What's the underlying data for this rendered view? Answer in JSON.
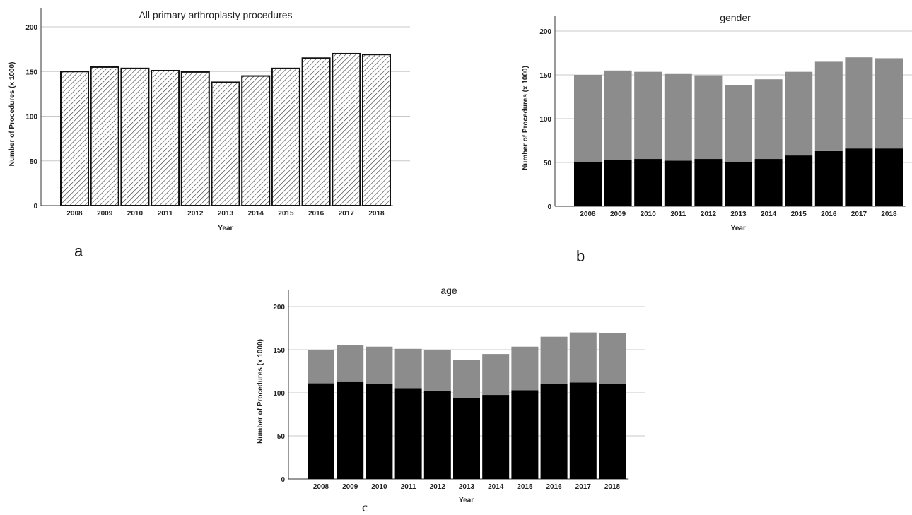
{
  "chart_data": [
    {
      "type": "bar",
      "panel_label": "a",
      "title": "All  primary arthroplasty procedures",
      "xlabel": "Year",
      "ylabel": "Number of Procedures (x 1000)",
      "ylim": [
        0,
        200
      ],
      "yticks": [
        "0",
        "50",
        "100",
        "150",
        "200"
      ],
      "categories": [
        "2008",
        "2009",
        "2010",
        "2011",
        "2012",
        "2013",
        "2014",
        "2015",
        "2016",
        "2017",
        "2018"
      ],
      "values": [
        150,
        155,
        153.5,
        151,
        149.5,
        138,
        145,
        153.5,
        165,
        170,
        169
      ],
      "grid": true,
      "fill": "hatched"
    },
    {
      "type": "bar",
      "stacked": true,
      "panel_label": "b",
      "title": "gender",
      "xlabel": "Year",
      "ylabel": "Number of Procedures (x 1000)",
      "ylim": [
        0,
        200
      ],
      "yticks": [
        "0",
        "50",
        "100",
        "150",
        "200"
      ],
      "categories": [
        "2008",
        "2009",
        "2010",
        "2011",
        "2012",
        "2013",
        "2014",
        "2015",
        "2016",
        "2017",
        "2018"
      ],
      "series": [
        {
          "values": [
            51,
            53,
            54,
            52,
            54,
            51,
            54,
            58,
            63,
            66,
            66
          ],
          "color": "#000000"
        },
        {
          "values": [
            99,
            102,
            99.5,
            99,
            95.5,
            87,
            91,
            95.5,
            102,
            104,
            103
          ],
          "color": "#8c8c8c"
        }
      ],
      "grid": true
    },
    {
      "type": "bar",
      "stacked": true,
      "panel_label": "c",
      "title": "age",
      "xlabel": "Year",
      "ylabel": "Number of Procedures (x 1000)",
      "ylim": [
        0,
        200
      ],
      "yticks": [
        "0",
        "50",
        "100",
        "150",
        "200"
      ],
      "categories": [
        "2008",
        "2009",
        "2010",
        "2011",
        "2012",
        "2013",
        "2014",
        "2015",
        "2016",
        "2017",
        "2018"
      ],
      "series": [
        {
          "values": [
            111,
            112.5,
            110,
            105.5,
            102.5,
            93.5,
            97.5,
            103,
            110,
            112,
            110.5
          ],
          "color": "#000000"
        },
        {
          "values": [
            39,
            42.5,
            43.5,
            45.5,
            47,
            44.5,
            47.5,
            50.5,
            55,
            58,
            58.5
          ],
          "color": "#8c8c8c"
        }
      ],
      "grid": true
    }
  ]
}
